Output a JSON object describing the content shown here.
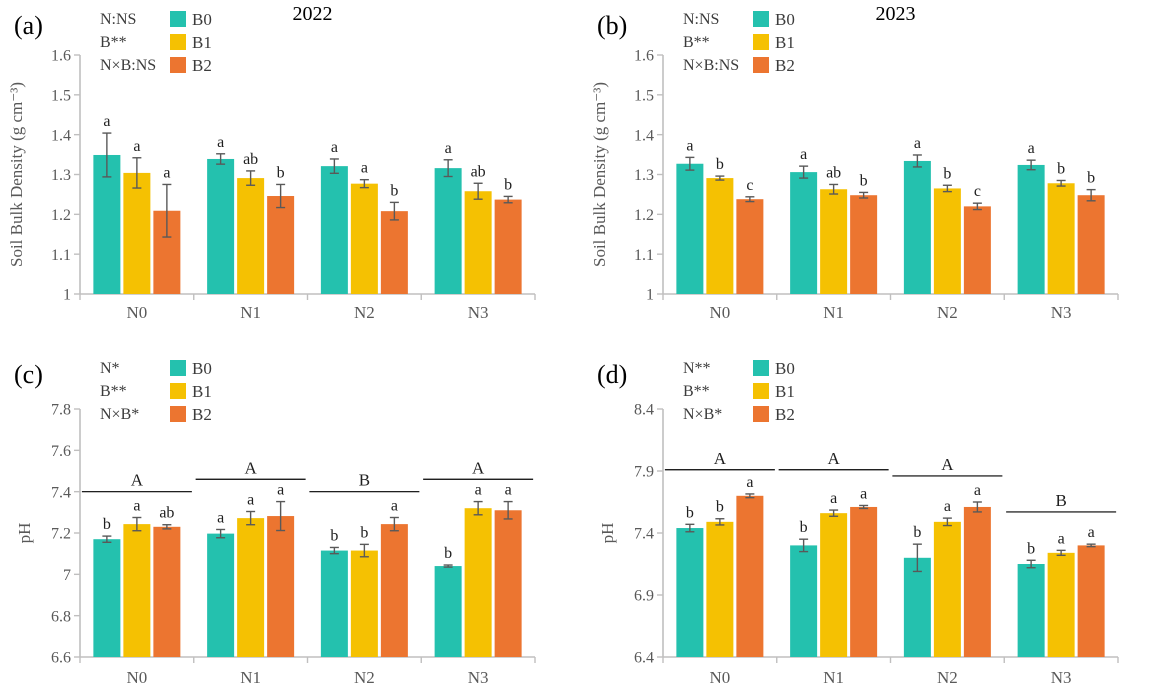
{
  "colors": {
    "B0": "#24c1ae",
    "B1": "#f5c102",
    "B2": "#ec7530",
    "axis": "#c0bfbf",
    "tick_text": "#595959",
    "error_bar": "#595959",
    "sig_letter": "#1f1f1f",
    "stats_text": "#3b3b3b",
    "title_text": "#000000",
    "group_line": "#000000"
  },
  "chart_data": [
    {
      "type": "bar",
      "panel_label": "(a)",
      "title": "2022",
      "stats": [
        "N:NS",
        "B**",
        "N×B:NS"
      ],
      "legend": [
        "B0",
        "B1",
        "B2"
      ],
      "legend_position": "top-left",
      "grid": false,
      "ylabel": "Soil Bulk Density (g cm⁻³)",
      "ylim": [
        1.0,
        1.6
      ],
      "yticks": [
        1.0,
        1.1,
        1.2,
        1.3,
        1.4,
        1.5,
        1.6
      ],
      "ytick_labels": [
        "1",
        "1.1",
        "1.2",
        "1.3",
        "1.4",
        "1.5",
        "1.6"
      ],
      "categories": [
        "N0",
        "N1",
        "N2",
        "N3"
      ],
      "series": [
        {
          "name": "B0",
          "values": [
            1.349,
            1.339,
            1.321,
            1.316
          ],
          "errors": [
            0.055,
            0.013,
            0.018,
            0.021
          ],
          "letters": [
            "a",
            "a",
            "a",
            "a"
          ]
        },
        {
          "name": "B1",
          "values": [
            1.304,
            1.291,
            1.277,
            1.258
          ],
          "errors": [
            0.038,
            0.018,
            0.01,
            0.02
          ],
          "letters": [
            "a",
            "ab",
            "a",
            "ab"
          ]
        },
        {
          "name": "B2",
          "values": [
            1.209,
            1.246,
            1.208,
            1.237
          ],
          "errors": [
            0.066,
            0.029,
            0.022,
            0.008
          ],
          "letters": [
            "a",
            "b",
            "b",
            "b"
          ]
        }
      ],
      "group_letters": null
    },
    {
      "type": "bar",
      "panel_label": "(b)",
      "title": "2023",
      "stats": [
        "N:NS",
        "B**",
        "N×B:NS"
      ],
      "legend": [
        "B0",
        "B1",
        "B2"
      ],
      "legend_position": "top-left",
      "grid": false,
      "ylabel": "Soil Bulk Density (g cm⁻³)",
      "ylim": [
        1.0,
        1.6
      ],
      "yticks": [
        1.0,
        1.1,
        1.2,
        1.3,
        1.4,
        1.5,
        1.6
      ],
      "ytick_labels": [
        "1",
        "1.1",
        "1.2",
        "1.3",
        "1.4",
        "1.5",
        "1.6"
      ],
      "categories": [
        "N0",
        "N1",
        "N2",
        "N3"
      ],
      "series": [
        {
          "name": "B0",
          "values": [
            1.327,
            1.306,
            1.334,
            1.324
          ],
          "errors": [
            0.016,
            0.015,
            0.015,
            0.012
          ],
          "letters": [
            "a",
            "a",
            "a",
            "a"
          ]
        },
        {
          "name": "B1",
          "values": [
            1.291,
            1.263,
            1.265,
            1.278
          ],
          "errors": [
            0.005,
            0.012,
            0.008,
            0.007
          ],
          "letters": [
            "b",
            "ab",
            "b",
            "b"
          ]
        },
        {
          "name": "B2",
          "values": [
            1.238,
            1.248,
            1.22,
            1.248
          ],
          "errors": [
            0.006,
            0.007,
            0.008,
            0.014
          ],
          "letters": [
            "c",
            "b",
            "c",
            "b"
          ]
        }
      ],
      "group_letters": null
    },
    {
      "type": "bar",
      "panel_label": "(c)",
      "title": "",
      "stats": [
        "N*",
        "B**",
        "N×B*"
      ],
      "legend": [
        "B0",
        "B1",
        "B2"
      ],
      "legend_position": "top-left",
      "grid": false,
      "ylabel": "pH",
      "ylim": [
        6.6,
        7.8
      ],
      "yticks": [
        6.6,
        6.8,
        7.0,
        7.2,
        7.4,
        7.6,
        7.8
      ],
      "ytick_labels": [
        "6.6",
        "6.8",
        "7",
        "7.2",
        "7.4",
        "7.6",
        "7.8"
      ],
      "categories": [
        "N0",
        "N1",
        "N2",
        "N3"
      ],
      "series": [
        {
          "name": "B0",
          "values": [
            7.17,
            7.197,
            7.115,
            7.04
          ],
          "errors": [
            0.015,
            0.02,
            0.015,
            0.005
          ],
          "letters": [
            "b",
            "a",
            "b",
            "b"
          ]
        },
        {
          "name": "B1",
          "values": [
            7.243,
            7.272,
            7.115,
            7.32
          ],
          "errors": [
            0.032,
            0.032,
            0.03,
            0.032
          ],
          "letters": [
            "a",
            "a",
            "b",
            "a"
          ]
        },
        {
          "name": "B2",
          "values": [
            7.23,
            7.282,
            7.243,
            7.31
          ],
          "errors": [
            0.01,
            0.07,
            0.032,
            0.042
          ],
          "letters": [
            "ab",
            "a",
            "a",
            "a"
          ]
        }
      ],
      "group_letters": [
        {
          "letter": "A",
          "line_y": 7.4
        },
        {
          "letter": "A",
          "line_y": 7.46
        },
        {
          "letter": "B",
          "line_y": 7.4
        },
        {
          "letter": "A",
          "line_y": 7.46
        }
      ]
    },
    {
      "type": "bar",
      "panel_label": "(d)",
      "title": "",
      "stats": [
        "N**",
        "B**",
        "N×B*"
      ],
      "legend": [
        "B0",
        "B1",
        "B2"
      ],
      "legend_position": "top-left",
      "grid": false,
      "ylabel": "pH",
      "ylim": [
        6.4,
        8.4
      ],
      "yticks": [
        6.4,
        6.9,
        7.4,
        7.9,
        8.4
      ],
      "ytick_labels": [
        "6.4",
        "6.9",
        "7.4",
        "7.9",
        "8.4"
      ],
      "categories": [
        "N0",
        "N1",
        "N2",
        "N3"
      ],
      "series": [
        {
          "name": "B0",
          "values": [
            7.44,
            7.3,
            7.2,
            7.15
          ],
          "errors": [
            0.03,
            0.05,
            0.11,
            0.03
          ],
          "letters": [
            "b",
            "b",
            "b",
            "b"
          ]
        },
        {
          "name": "B1",
          "values": [
            7.49,
            7.56,
            7.49,
            7.24
          ],
          "errors": [
            0.025,
            0.025,
            0.03,
            0.02
          ],
          "letters": [
            "b",
            "a",
            "a",
            "a"
          ]
        },
        {
          "name": "B2",
          "values": [
            7.7,
            7.61,
            7.61,
            7.3
          ],
          "errors": [
            0.015,
            0.012,
            0.04,
            0.01
          ],
          "letters": [
            "a",
            "a",
            "a",
            "a"
          ]
        }
      ],
      "group_letters": [
        {
          "letter": "A",
          "line_y": 7.91
        },
        {
          "letter": "A",
          "line_y": 7.91
        },
        {
          "letter": "A",
          "line_y": 7.86
        },
        {
          "letter": "B",
          "line_y": 7.57
        }
      ]
    }
  ]
}
